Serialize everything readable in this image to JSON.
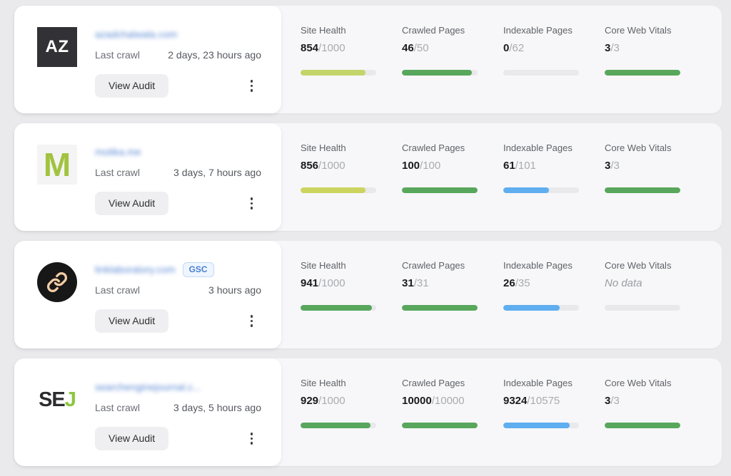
{
  "labels": {
    "last_crawl": "Last crawl"
  },
  "buttons": {
    "view_audit": "View Audit"
  },
  "colors": {
    "green": "#58a75c",
    "lime": "#c3d56a",
    "blue": "#5faef0",
    "track": "#e9e9eb",
    "link_blue": "#4d7fd0"
  },
  "sites": [
    {
      "icon_text": "AZ",
      "domain": "azadchalwala.com",
      "last_crawl": "2 days, 23 hours ago",
      "metrics": [
        {
          "label": "Site Health",
          "value": "854",
          "total": "/1000",
          "fill": 85.4,
          "color": "#c3d56a"
        },
        {
          "label": "Crawled Pages",
          "value": "46",
          "total": "/50",
          "fill": 92,
          "color": "#58a75c"
        },
        {
          "label": "Indexable Pages",
          "value": "0",
          "total": "/62",
          "fill": 0,
          "color": "#5faef0"
        },
        {
          "label": "Core Web Vitals",
          "value": "3",
          "total": "/3",
          "fill": 100,
          "color": "#58a75c"
        }
      ]
    },
    {
      "icon_text": "M",
      "domain": "motika.me",
      "last_crawl": "3 days, 7 hours ago",
      "metrics": [
        {
          "label": "Site Health",
          "value": "856",
          "total": "/1000",
          "fill": 85.6,
          "color": "#ccd45f"
        },
        {
          "label": "Crawled Pages",
          "value": "100",
          "total": "/100",
          "fill": 100,
          "color": "#58a75c"
        },
        {
          "label": "Indexable Pages",
          "value": "61",
          "total": "/101",
          "fill": 60.4,
          "color": "#5faef0"
        },
        {
          "label": "Core Web Vitals",
          "value": "3",
          "total": "/3",
          "fill": 100,
          "color": "#58a75c"
        }
      ]
    },
    {
      "icon_text": "",
      "domain": "linklaboratory.com",
      "badge": "GSC",
      "last_crawl": "3 hours ago",
      "metrics": [
        {
          "label": "Site Health",
          "value": "941",
          "total": "/1000",
          "fill": 94.1,
          "color": "#58a75c"
        },
        {
          "label": "Crawled Pages",
          "value": "31",
          "total": "/31",
          "fill": 100,
          "color": "#58a75c"
        },
        {
          "label": "Indexable Pages",
          "value": "26",
          "total": "/35",
          "fill": 74.3,
          "color": "#5faef0"
        },
        {
          "label": "Core Web Vitals",
          "value": "No data",
          "fill": 0,
          "color": "#58a75c"
        }
      ]
    },
    {
      "icon_text": "SE",
      "icon_text_accent": "J",
      "domain": "searchenginejournal.c...",
      "last_crawl": "3 days, 5 hours ago",
      "metrics": [
        {
          "label": "Site Health",
          "value": "929",
          "total": "/1000",
          "fill": 92.9,
          "color": "#58a75c"
        },
        {
          "label": "Crawled Pages",
          "value": "10000",
          "total": "/10000",
          "fill": 100,
          "color": "#58a75c"
        },
        {
          "label": "Indexable Pages",
          "value": "9324",
          "total": "/10575",
          "fill": 88.2,
          "color": "#5faef0"
        },
        {
          "label": "Core Web Vitals",
          "value": "3",
          "total": "/3",
          "fill": 100,
          "color": "#58a75c"
        }
      ]
    }
  ]
}
